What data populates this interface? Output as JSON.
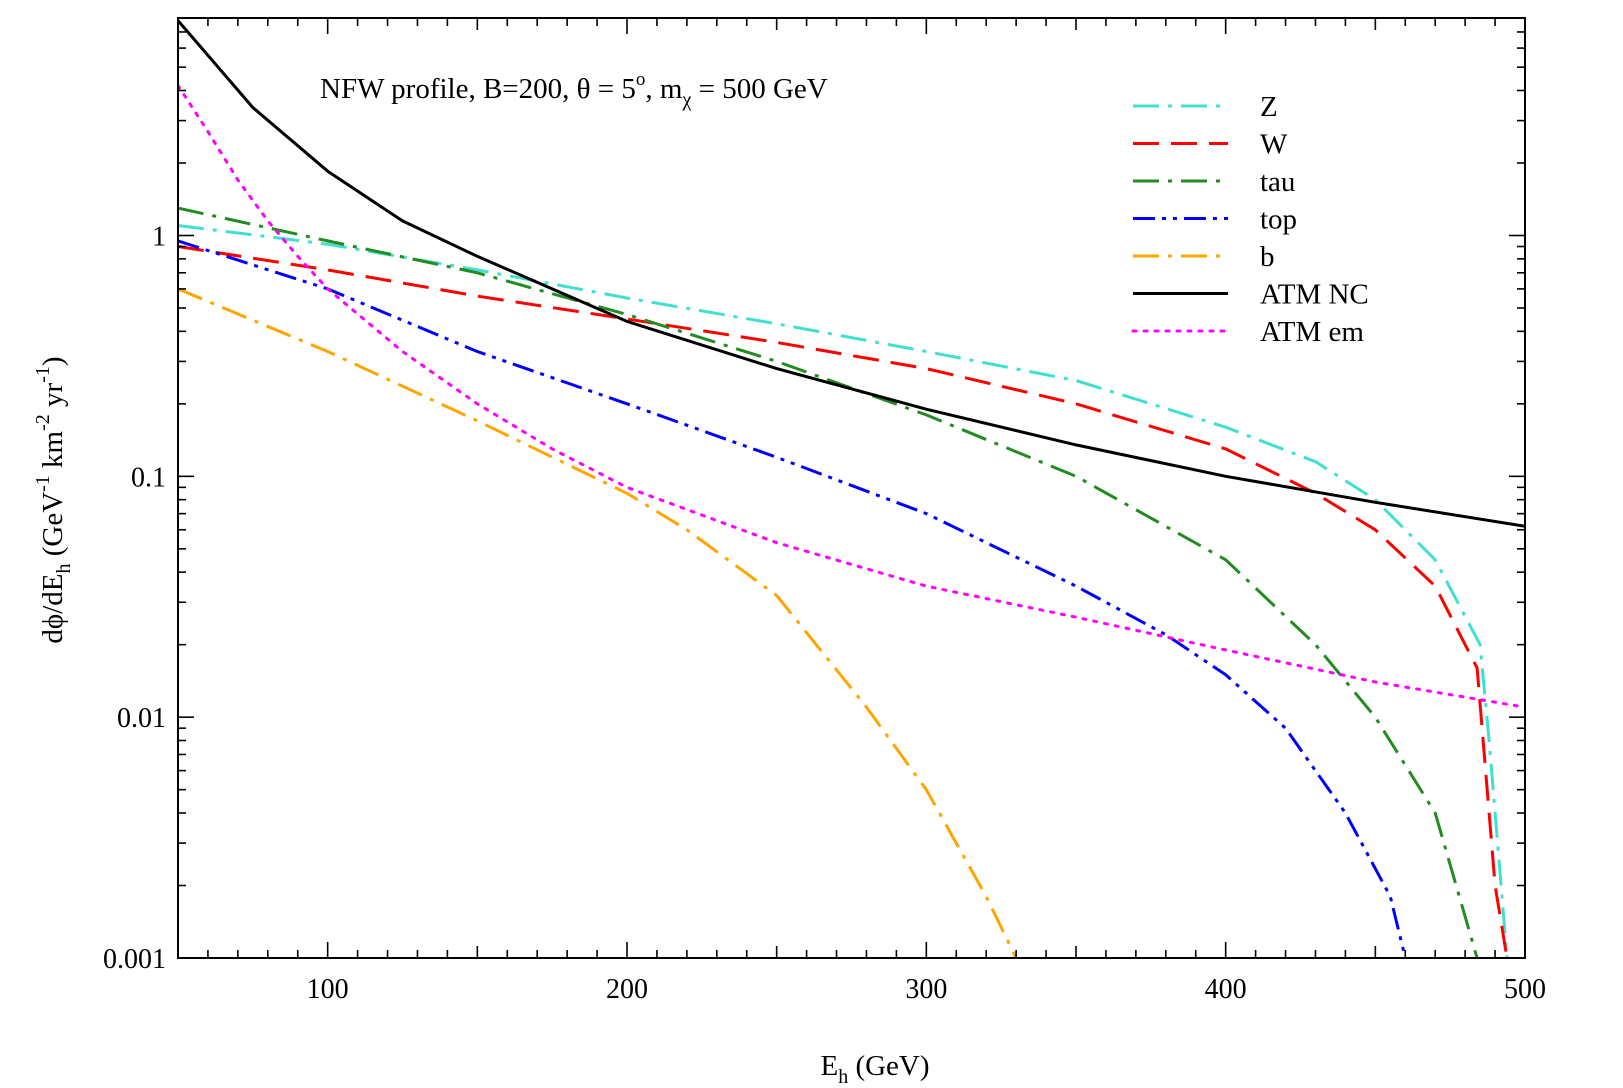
{
  "chart_data": {
    "type": "line",
    "annotation": {
      "prefix": "NFW profile, B=200, θ = 5",
      "degree": "o",
      "mid": ", m",
      "sub": "χ",
      "suffix": " = 500 GeV"
    },
    "xlabel": {
      "main": "E",
      "sub": "h",
      "unit": " (GeV)"
    },
    "ylabel": {
      "p1": "dϕ/dE",
      "s1": "h",
      "p2": " (GeV",
      "e1": "-1",
      "p3": " km",
      "e2": "-2",
      "p4": " yr",
      "e3": "-1",
      "p5": ")"
    },
    "xlim": [
      50,
      500
    ],
    "ylim": [
      0.001,
      8
    ],
    "yscale": "log",
    "xticks": [
      100,
      200,
      300,
      400,
      500
    ],
    "xtick_labels": [
      "100",
      "200",
      "300",
      "400",
      "500"
    ],
    "yticks": [
      0.001,
      0.01,
      0.1,
      1
    ],
    "ytick_labels": [
      "0.001",
      "0.01",
      "0.1",
      "1"
    ],
    "grid": false,
    "legend_position": "top-right",
    "series": [
      {
        "name": "Z",
        "color": "#40E0D0",
        "dash": "dashdot",
        "x": [
          50,
          100,
          150,
          200,
          250,
          300,
          350,
          400,
          430,
          450,
          470,
          485,
          488,
          492,
          494
        ],
        "y": [
          1.1,
          0.92,
          0.72,
          0.55,
          0.43,
          0.33,
          0.25,
          0.16,
          0.115,
          0.08,
          0.045,
          0.02,
          0.008,
          0.002,
          0.001
        ]
      },
      {
        "name": "W",
        "color": "#FF0000",
        "dash": "dashed",
        "x": [
          50,
          100,
          150,
          200,
          250,
          300,
          350,
          400,
          430,
          450,
          470,
          484,
          486,
          490,
          494
        ],
        "y": [
          0.9,
          0.72,
          0.56,
          0.45,
          0.36,
          0.28,
          0.2,
          0.13,
          0.085,
          0.06,
          0.035,
          0.016,
          0.008,
          0.002,
          0.001
        ]
      },
      {
        "name": "tau",
        "color": "#228B22",
        "dash": "dashdot",
        "x": [
          50,
          100,
          150,
          200,
          250,
          300,
          350,
          400,
          430,
          450,
          470,
          484
        ],
        "y": [
          1.3,
          0.95,
          0.7,
          0.47,
          0.3,
          0.18,
          0.1,
          0.045,
          0.02,
          0.01,
          0.004,
          0.001
        ]
      },
      {
        "name": "top",
        "color": "#0000FF",
        "dash": "dashdotdot",
        "x": [
          50,
          100,
          150,
          200,
          250,
          300,
          350,
          380,
          400,
          420,
          440,
          455,
          460
        ],
        "y": [
          0.95,
          0.6,
          0.33,
          0.2,
          0.12,
          0.07,
          0.035,
          0.022,
          0.015,
          0.009,
          0.004,
          0.0018,
          0.001
        ]
      },
      {
        "name": "b",
        "color": "#FFA500",
        "dash": "dashdot",
        "x": [
          50,
          100,
          150,
          200,
          220,
          250,
          280,
          300,
          320,
          330
        ],
        "y": [
          0.6,
          0.33,
          0.17,
          0.085,
          0.06,
          0.032,
          0.011,
          0.005,
          0.0018,
          0.001
        ]
      },
      {
        "name": "ATM NC",
        "color": "#000000",
        "dash": "solid",
        "x": [
          50,
          75,
          100,
          125,
          150,
          175,
          200,
          250,
          300,
          350,
          400,
          450,
          500
        ],
        "y": [
          7.8,
          3.4,
          1.85,
          1.15,
          0.82,
          0.6,
          0.44,
          0.28,
          0.19,
          0.135,
          0.1,
          0.078,
          0.062
        ]
      },
      {
        "name": "ATM em",
        "color": "#FF00FF",
        "dash": "dotted",
        "x": [
          50,
          60,
          70,
          80,
          90,
          100,
          125,
          150,
          175,
          200,
          250,
          300,
          350,
          400,
          450,
          500
        ],
        "y": [
          4.2,
          2.7,
          1.7,
          1.15,
          0.82,
          0.6,
          0.33,
          0.2,
          0.13,
          0.09,
          0.053,
          0.035,
          0.026,
          0.019,
          0.014,
          0.011
        ]
      }
    ]
  }
}
